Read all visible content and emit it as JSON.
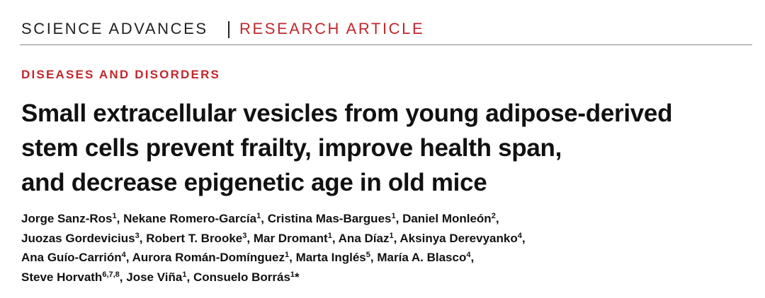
{
  "header": {
    "journal": "SCIENCE ADVANCES",
    "section": "RESEARCH ARTICLE"
  },
  "category": "DISEASES AND DISORDERS",
  "title": [
    "Small extracellular vesicles from young adipose-derived",
    "stem cells prevent frailty, improve health span,",
    "and decrease epigenetic age in old mice"
  ],
  "author_lines": [
    [
      {
        "name": "Jorge Sanz-Ros",
        "affil": "1",
        "sep": ","
      },
      {
        "name": "Nekane Romero-García",
        "affil": "1",
        "sep": ","
      },
      {
        "name": "Cristina Mas-Bargues",
        "affil": "1",
        "sep": ","
      },
      {
        "name": "Daniel Monleón",
        "affil": "2",
        "sep": ","
      }
    ],
    [
      {
        "name": "Juozas Gordevicius",
        "affil": "3",
        "sep": ","
      },
      {
        "name": "Robert T. Brooke",
        "affil": "3",
        "sep": ","
      },
      {
        "name": "Mar Dromant",
        "affil": "1",
        "sep": ","
      },
      {
        "name": "Ana Díaz",
        "affil": "1",
        "sep": ","
      },
      {
        "name": "Aksinya Derevyanko",
        "affil": "4",
        "sep": ","
      }
    ],
    [
      {
        "name": "Ana Guío-Carrión",
        "affil": "4",
        "sep": ","
      },
      {
        "name": "Aurora Román-Domínguez",
        "affil": "1",
        "sep": ","
      },
      {
        "name": "Marta Inglés",
        "affil": "5",
        "sep": ","
      },
      {
        "name": "María A. Blasco",
        "affil": "4",
        "sep": ","
      }
    ],
    [
      {
        "name": "Steve Horvath",
        "affil": "6,7,8",
        "sep": ","
      },
      {
        "name": "Jose Viña",
        "affil": "1",
        "sep": ","
      },
      {
        "name": "Consuelo Borrás",
        "affil": "1",
        "sep": "*"
      }
    ]
  ]
}
